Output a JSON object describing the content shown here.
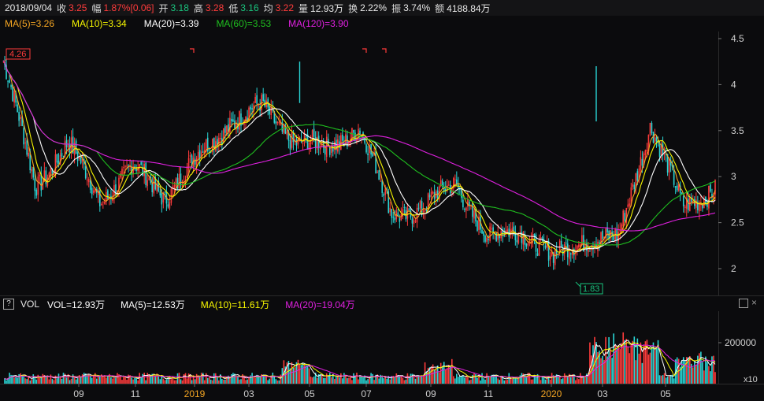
{
  "infobar": {
    "date": "2018/09/04",
    "close_label": "收",
    "close": "3.25",
    "change_label": "幅",
    "change": "1.87%[0.06]",
    "open_label": "开",
    "open": "3.18",
    "high_label": "高",
    "high": "3.28",
    "low_label": "低",
    "low": "3.16",
    "avg_label": "均",
    "avg": "3.22",
    "volume_label": "量",
    "volume": "12.93万",
    "turnover_label": "换",
    "turnover": "2.22%",
    "amplitude_label": "振",
    "amplitude": "3.74%",
    "amount_label": "额",
    "amount": "4188.84万"
  },
  "ma_legend": [
    {
      "label": "MA(5)=3.26",
      "color": "#f5a623"
    },
    {
      "label": "MA(10)=3.34",
      "color": "#f7f700"
    },
    {
      "label": "MA(20)=3.39",
      "color": "#ffffff"
    },
    {
      "label": "MA(60)=3.53",
      "color": "#1fbf1f"
    },
    {
      "label": "MA(120)=3.90",
      "color": "#e020e0"
    }
  ],
  "price_axis": [
    "4.5",
    "4",
    "3.5",
    "3",
    "2.5",
    "2"
  ],
  "price_markers": {
    "high": "4.26",
    "low": "1.83"
  },
  "vol_header": {
    "help": "?",
    "title": "VOL",
    "items": [
      {
        "label": "VOL=12.93万",
        "color": "#ffffff"
      },
      {
        "label": "MA(5)=12.53万",
        "color": "#ffffff"
      },
      {
        "label": "MA(10)=11.61万",
        "color": "#f7f700"
      },
      {
        "label": "MA(20)=19.04万",
        "color": "#e020e0"
      }
    ]
  },
  "vol_axis": {
    "tick": "200000",
    "unit": "x10"
  },
  "time_axis": [
    {
      "label": "09",
      "year": false
    },
    {
      "label": "11",
      "year": false
    },
    {
      "label": "2019",
      "year": true
    },
    {
      "label": "03",
      "year": false
    },
    {
      "label": "05",
      "year": false
    },
    {
      "label": "07",
      "year": false
    },
    {
      "label": "09",
      "year": false
    },
    {
      "label": "11",
      "year": false
    },
    {
      "label": "2020",
      "year": true
    },
    {
      "label": "03",
      "year": false
    },
    {
      "label": "05",
      "year": false
    }
  ],
  "colors": {
    "up": "#ff3b3b",
    "down": "#19c37d",
    "bg": "#0b0b0d",
    "year_label": "#f5a623"
  },
  "chart_data": {
    "type": "candlestick",
    "price_range": [
      1.7,
      4.6
    ],
    "close_series_approx": [
      {
        "t": "2018-08",
        "v": 4.26
      },
      {
        "t": "2018-09",
        "v": 2.9
      },
      {
        "t": "2018-10",
        "v": 3.35
      },
      {
        "t": "2018-11",
        "v": 2.75
      },
      {
        "t": "2018-12",
        "v": 3.1
      },
      {
        "t": "2019-01",
        "v": 2.8
      },
      {
        "t": "2019-02",
        "v": 3.2
      },
      {
        "t": "2019-03",
        "v": 3.6
      },
      {
        "t": "2019-04",
        "v": 3.75
      },
      {
        "t": "2019-05",
        "v": 3.4
      },
      {
        "t": "2019-06",
        "v": 3.3
      },
      {
        "t": "2019-07",
        "v": 3.55
      },
      {
        "t": "2019-08",
        "v": 2.6
      },
      {
        "t": "2019-09",
        "v": 2.65
      },
      {
        "t": "2019-10",
        "v": 2.95
      },
      {
        "t": "2019-11",
        "v": 2.3
      },
      {
        "t": "2019-12",
        "v": 2.45
      },
      {
        "t": "2020-01",
        "v": 2.1
      },
      {
        "t": "2020-02",
        "v": 2.35
      },
      {
        "t": "2020-03",
        "v": 2.3
      },
      {
        "t": "2020-04",
        "v": 3.6
      },
      {
        "t": "2020-05",
        "v": 2.65
      },
      {
        "t": "2020-06",
        "v": 2.9
      }
    ]
  }
}
